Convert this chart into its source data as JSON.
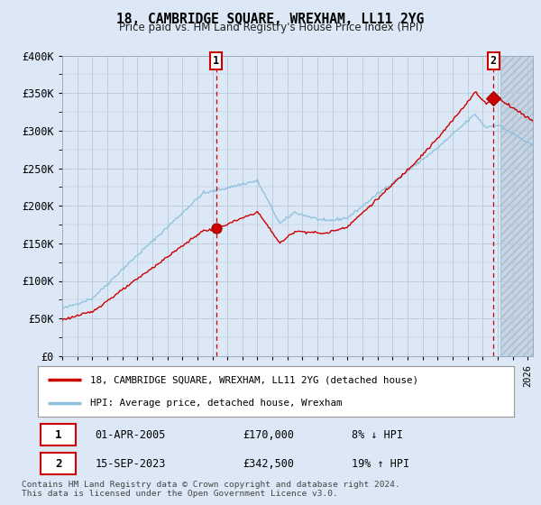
{
  "title": "18, CAMBRIDGE SQUARE, WREXHAM, LL11 2YG",
  "subtitle": "Price paid vs. HM Land Registry's House Price Index (HPI)",
  "ylim": [
    0,
    400000
  ],
  "yticks": [
    0,
    50000,
    100000,
    150000,
    200000,
    250000,
    300000,
    350000,
    400000
  ],
  "ytick_labels": [
    "£0",
    "£50K",
    "£100K",
    "£150K",
    "£200K",
    "£250K",
    "£300K",
    "£350K",
    "£400K"
  ],
  "xstart_year": 1995,
  "xend_year": 2026,
  "transaction1_date": 2005.25,
  "transaction1_price": 170000,
  "transaction2_date": 2023.71,
  "transaction2_price": 342500,
  "transaction1_label": "01-APR-2005",
  "transaction1_amount": "£170,000",
  "transaction1_hpi": "8% ↓ HPI",
  "transaction2_label": "15-SEP-2023",
  "transaction2_amount": "£342,500",
  "transaction2_hpi": "19% ↑ HPI",
  "legend_line1": "18, CAMBRIDGE SQUARE, WREXHAM, LL11 2YG (detached house)",
  "legend_line2": "HPI: Average price, detached house, Wrexham",
  "footer1": "Contains HM Land Registry data © Crown copyright and database right 2024.",
  "footer2": "This data is licensed under the Open Government Licence v3.0.",
  "hpi_color": "#8bbfdc",
  "price_color": "#cc0000",
  "bg_color": "#dce8f5",
  "plot_bg": "#dce8f5",
  "grid_color": "#b8c8d8"
}
